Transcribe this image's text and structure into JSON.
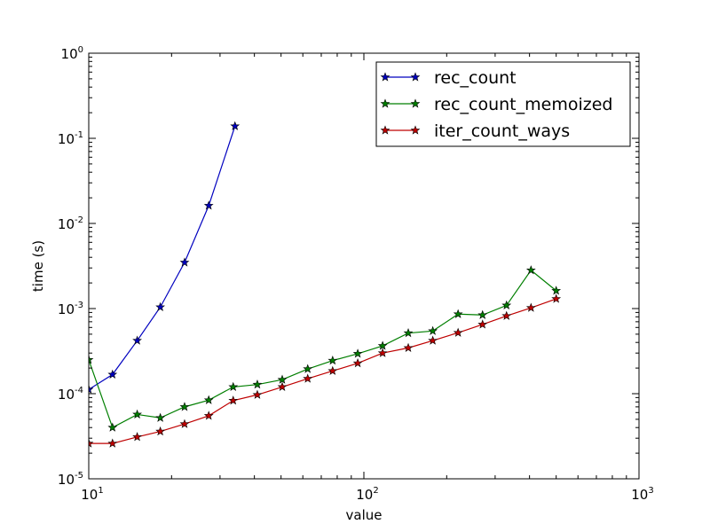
{
  "chart_data": {
    "type": "line",
    "title": "",
    "xlabel": "value",
    "ylabel": "time (s)",
    "xscale": "log",
    "yscale": "log",
    "xlim": [
      10,
      1000
    ],
    "ylim": [
      1e-05,
      1
    ],
    "grid": false,
    "legend_position": "top-right",
    "x_ticks": [
      {
        "base": "10",
        "exp": "1"
      },
      {
        "base": "10",
        "exp": "2"
      },
      {
        "base": "10",
        "exp": "3"
      }
    ],
    "y_ticks": [
      {
        "base": "10",
        "exp": "-5"
      },
      {
        "base": "10",
        "exp": "-4"
      },
      {
        "base": "10",
        "exp": "-3"
      },
      {
        "base": "10",
        "exp": "-2"
      },
      {
        "base": "10",
        "exp": "-1"
      },
      {
        "base": "10",
        "exp": "0"
      }
    ],
    "series": [
      {
        "name": "rec_count",
        "color": "#0000bf",
        "marker": "star",
        "x": [
          10,
          12.2,
          15,
          18.2,
          22.3,
          27.3,
          34
        ],
        "y": [
          0.000112,
          0.000168,
          0.00042,
          0.00104,
          0.00348,
          0.0162,
          0.139
        ]
      },
      {
        "name": "rec_count_memoized",
        "color": "#007f00",
        "marker": "star",
        "x": [
          10,
          12.2,
          15,
          18.2,
          22.3,
          27.3,
          33.5,
          41,
          50.5,
          62.5,
          77,
          95,
          117,
          145,
          178,
          220,
          270,
          330,
          405,
          500
        ],
        "y": [
          0.00025,
          4e-05,
          5.7e-05,
          5.2e-05,
          7e-05,
          8.4e-05,
          0.00012,
          0.000128,
          0.000146,
          0.000195,
          0.000245,
          0.000295,
          0.000365,
          0.000515,
          0.000545,
          0.00086,
          0.00084,
          0.00109,
          0.00282,
          0.00162
        ]
      },
      {
        "name": "iter_count_ways",
        "color": "#bf0000",
        "marker": "star",
        "x": [
          10,
          12.2,
          15,
          18.2,
          22.3,
          27.3,
          33.5,
          41,
          50.5,
          62.5,
          77,
          95,
          117,
          145,
          178,
          220,
          270,
          330,
          405,
          500
        ],
        "y": [
          2.6e-05,
          2.6e-05,
          3.1e-05,
          3.6e-05,
          4.4e-05,
          5.5e-05,
          8.3e-05,
          9.7e-05,
          0.00012,
          0.00015,
          0.000185,
          0.000228,
          0.0003,
          0.000345,
          0.00042,
          0.00052,
          0.00065,
          0.00082,
          0.00102,
          0.0013
        ]
      }
    ]
  }
}
